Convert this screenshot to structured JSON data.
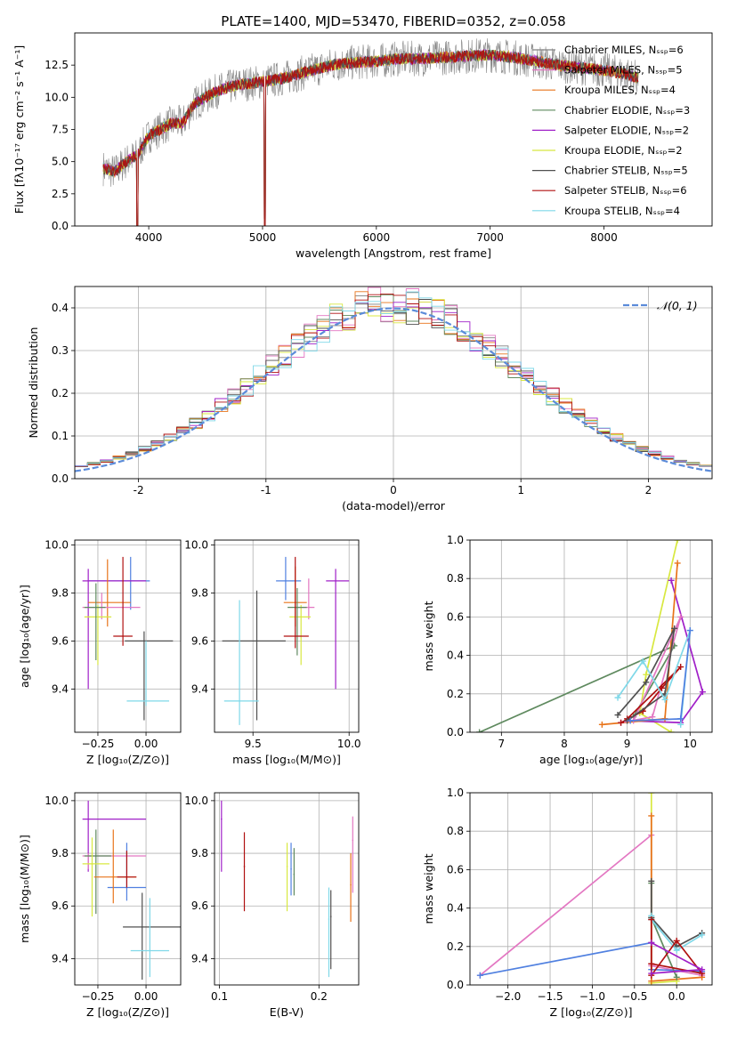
{
  "title": "PLATE=1400, MJD=53470, FIBERID=0352, z=0.058",
  "colors": {
    "gray": "#808080",
    "cyan": "#80dfe0",
    "pink": "#e377c2",
    "orange": "#e8741a",
    "green": "#5f8a5f",
    "purple": "#a020c8",
    "yellow": "#d8e840",
    "dark": "#505050",
    "red": "#b01010",
    "blue": "#5080e0",
    "ltblue": "#7fd8e8"
  },
  "chart_data": [
    {
      "id": "spectrum",
      "type": "line",
      "title": "PLATE=1400, MJD=53470, FIBERID=0352, z=0.058",
      "xlabel": "wavelength [Angstrom, rest frame]",
      "ylabel": "Flux [fλ10⁻¹⁷ erg cm⁻² s⁻¹ A⁻¹]",
      "xlim": [
        3350,
        8950
      ],
      "ylim": [
        0,
        15
      ],
      "xticks": [
        4000,
        5000,
        6000,
        7000,
        8000
      ],
      "yticks": [
        0.0,
        2.5,
        5.0,
        7.5,
        10.0,
        12.5
      ],
      "legend_position": "right",
      "x_range_data": [
        3600,
        8300
      ],
      "envelope": {
        "x": [
          3600,
          3700,
          3800,
          3900,
          4000,
          4100,
          4200,
          4300,
          4400,
          4500,
          4600,
          4800,
          5000,
          5200,
          5400,
          5600,
          5800,
          6000,
          6200,
          6400,
          6600,
          6800,
          7000,
          7200,
          7400,
          7600,
          7800,
          8000,
          8200,
          8300
        ],
        "y": [
          4.5,
          4.2,
          5.0,
          5.5,
          7.0,
          7.5,
          8.0,
          8.0,
          9.5,
          10.0,
          10.5,
          11.0,
          11.2,
          11.5,
          12.0,
          12.5,
          12.7,
          12.8,
          13.0,
          13.0,
          13.1,
          13.2,
          13.3,
          13.1,
          12.8,
          12.5,
          12.3,
          12.1,
          11.8,
          11.5
        ]
      },
      "series": [
        {
          "name": "Chabrier MILES, N_SSP=6",
          "color": "#808080"
        },
        {
          "name": "Salpeter MILES, N_SSP=5",
          "color": "#e377c2"
        },
        {
          "name": "Kroupa MILES, N_SSP=4",
          "color": "#e8741a"
        },
        {
          "name": "Chabrier ELODIE, N_SSP=3",
          "color": "#5f8a5f"
        },
        {
          "name": "Salpeter ELODIE, N_SSP=2",
          "color": "#a020c8"
        },
        {
          "name": "Kroupa ELODIE, N_SSP=2",
          "color": "#d8e840"
        },
        {
          "name": "Chabrier STELIB, N_SSP=5",
          "color": "#505050"
        },
        {
          "name": "Salpeter STELIB, N_SSP=6",
          "color": "#b01010"
        },
        {
          "name": "Kroupa STELIB, N_SSP=4",
          "color": "#7fd8e8"
        }
      ]
    },
    {
      "id": "residuals",
      "type": "line",
      "xlabel": "(data-model)/error",
      "ylabel": "Normed distribution",
      "xlim": [
        -2.5,
        2.5
      ],
      "ylim": [
        0,
        0.45
      ],
      "xticks": [
        -2,
        -1,
        0,
        1,
        2
      ],
      "yticks": [
        0.0,
        0.1,
        0.2,
        0.3,
        0.4
      ],
      "grid": true,
      "legend_position": "top-right",
      "legend": "𝒩(0, 1)",
      "reference_curve": {
        "mean": 0,
        "sigma": 1,
        "color": "#5b8bd9"
      },
      "series_colors": [
        "#808080",
        "#e377c2",
        "#e8741a",
        "#5f8a5f",
        "#a020c8",
        "#d8e840",
        "#505050",
        "#b01010",
        "#7fd8e8"
      ]
    },
    {
      "id": "age-vs-Z",
      "type": "scatter",
      "xlabel": "Z [log₁₀(Z/Z⊙)]",
      "ylabel": "age  [log₁₀(age/yr)]",
      "xlim": [
        -0.37,
        0.18
      ],
      "ylim": [
        9.22,
        10.02
      ],
      "xticks": [
        -0.25,
        0.0
      ],
      "xticklabels": [
        "−0.25",
        "0.00"
      ],
      "yticks": [
        9.4,
        9.6,
        9.8,
        10.0
      ],
      "grid": true,
      "points": [
        {
          "x": -0.08,
          "y": 9.85,
          "xerr": [
            0.22,
            0.1
          ],
          "yerr": [
            0.12,
            0.1
          ],
          "color": "#5080e0"
        },
        {
          "x": -0.3,
          "y": 9.85,
          "xerr": [
            0.03,
            0.3
          ],
          "yerr": [
            0.45,
            0.05
          ],
          "color": "#a020c8"
        },
        {
          "x": -0.2,
          "y": 9.76,
          "xerr": [
            0.1,
            0.12
          ],
          "yerr": [
            0.1,
            0.18
          ],
          "color": "#e8741a"
        },
        {
          "x": -0.23,
          "y": 9.74,
          "xerr": [
            0.1,
            0.2
          ],
          "yerr": [
            0.05,
            0.06
          ],
          "color": "#e377c2"
        },
        {
          "x": -0.25,
          "y": 9.7,
          "xerr": [
            0.07,
            0.07
          ],
          "yerr": [
            0.2,
            0.05
          ],
          "color": "#d8e840"
        },
        {
          "x": -0.26,
          "y": 9.74,
          "xerr": [
            0.06,
            0.05
          ],
          "yerr": [
            0.22,
            0.1
          ],
          "color": "#5f8a5f"
        },
        {
          "x": -0.12,
          "y": 9.62,
          "xerr": [
            0.05,
            0.05
          ],
          "yerr": [
            0.04,
            0.33
          ],
          "color": "#b01010"
        },
        {
          "x": -0.01,
          "y": 9.6,
          "xerr": [
            0.1,
            0.15
          ],
          "yerr": [
            0.33,
            0.04
          ],
          "color": "#505050"
        },
        {
          "x": 0.0,
          "y": 9.35,
          "xerr": [
            0.1,
            0.12
          ],
          "yerr": [
            0.02,
            0.25
          ],
          "color": "#7fd8e8"
        }
      ]
    },
    {
      "id": "age-vs-mass",
      "type": "scatter",
      "xlabel": "mass [log₁₀(M/M⊙)]",
      "ylabel": "",
      "xlim": [
        9.3,
        10.05
      ],
      "ylim": [
        9.22,
        10.02
      ],
      "xticks": [
        9.5,
        10.0
      ],
      "xticklabels": [
        "9.5",
        "10.0"
      ],
      "yticks": [
        9.4,
        9.6,
        9.8,
        10.0
      ],
      "grid": true,
      "points": [
        {
          "x": 9.67,
          "y": 9.85,
          "xerr": [
            0.05,
            0.08
          ],
          "yerr": [
            0.08,
            0.1
          ],
          "color": "#5080e0"
        },
        {
          "x": 9.93,
          "y": 9.85,
          "xerr": [
            0.05,
            0.07
          ],
          "yerr": [
            0.45,
            0.05
          ],
          "color": "#a020c8"
        },
        {
          "x": 9.72,
          "y": 9.76,
          "xerr": [
            0.06,
            0.06
          ],
          "yerr": [
            0.1,
            0.15
          ],
          "color": "#e8741a"
        },
        {
          "x": 9.79,
          "y": 9.74,
          "xerr": [
            0.07,
            0.03
          ],
          "yerr": [
            0.05,
            0.12
          ],
          "color": "#e377c2"
        },
        {
          "x": 9.75,
          "y": 9.7,
          "xerr": [
            0.06,
            0.05
          ],
          "yerr": [
            0.2,
            0.05
          ],
          "color": "#d8e840"
        },
        {
          "x": 9.73,
          "y": 9.74,
          "xerr": [
            0.05,
            0.05
          ],
          "yerr": [
            0.2,
            0.08
          ],
          "color": "#5f8a5f"
        },
        {
          "x": 9.72,
          "y": 9.62,
          "xerr": [
            0.06,
            0.07
          ],
          "yerr": [
            0.05,
            0.33
          ],
          "color": "#b01010"
        },
        {
          "x": 9.52,
          "y": 9.6,
          "xerr": [
            0.18,
            0.15
          ],
          "yerr": [
            0.33,
            0.21
          ],
          "color": "#505050"
        },
        {
          "x": 9.43,
          "y": 9.35,
          "xerr": [
            0.08,
            0.1
          ],
          "yerr": [
            0.1,
            0.42
          ],
          "color": "#7fd8e8"
        }
      ]
    },
    {
      "id": "weight-vs-age",
      "type": "line",
      "xlabel": "age  [log₁₀(age/yr)]",
      "ylabel": "mass weight",
      "xlim": [
        6.5,
        10.35
      ],
      "ylim": [
        0,
        1
      ],
      "xticks": [
        7,
        8,
        9,
        10
      ],
      "yticks": [
        0.0,
        0.2,
        0.4,
        0.6,
        0.8,
        1.0
      ],
      "grid": true,
      "series": [
        {
          "color": "#5f8a5f",
          "x": [
            6.65,
            9.75,
            9.1
          ],
          "y": [
            0.0,
            0.45,
            0.08
          ]
        },
        {
          "color": "#d8e840",
          "x": [
            9.7,
            9.2,
            9.3,
            9.8
          ],
          "y": [
            0.0,
            0.1,
            0.3,
            1.0
          ]
        },
        {
          "color": "#a020c8",
          "x": [
            9.7,
            10.2,
            9.85,
            9.0
          ],
          "y": [
            0.79,
            0.21,
            0.05,
            0.06
          ]
        },
        {
          "color": "#e8741a",
          "x": [
            8.6,
            9.6,
            9.8
          ],
          "y": [
            0.04,
            0.07,
            0.88
          ]
        },
        {
          "color": "#e377c2",
          "x": [
            8.9,
            9.4,
            9.85,
            9.1
          ],
          "y": [
            0.05,
            0.08,
            0.6,
            0.06
          ]
        },
        {
          "color": "#b01010",
          "x": [
            8.9,
            9.25,
            9.55,
            9.85,
            9.0
          ],
          "y": [
            0.05,
            0.11,
            0.23,
            0.34,
            0.07
          ]
        },
        {
          "color": "#505050",
          "x": [
            8.85,
            9.3,
            9.75,
            9.6,
            9.0
          ],
          "y": [
            0.09,
            0.26,
            0.54,
            0.2,
            0.06
          ]
        },
        {
          "color": "#7fd8e8",
          "x": [
            8.85,
            9.25,
            9.6,
            10.0,
            9.85
          ],
          "y": [
            0.18,
            0.37,
            0.17,
            0.53,
            0.04
          ]
        },
        {
          "color": "#5080e0",
          "x": [
            9.05,
            9.85,
            10.0
          ],
          "y": [
            0.06,
            0.07,
            0.53
          ]
        }
      ]
    },
    {
      "id": "mass-vs-Z",
      "type": "scatter",
      "xlabel": "Z [log₁₀(Z/Z⊙)]",
      "ylabel": "mass [log₁₀(M/M⊙)]",
      "xlim": [
        -0.37,
        0.18
      ],
      "ylim": [
        9.3,
        10.03
      ],
      "xticks": [
        -0.25,
        0.0
      ],
      "xticklabels": [
        "−0.25",
        "0.00"
      ],
      "yticks": [
        9.4,
        9.6,
        9.8,
        10.0
      ],
      "grid": true,
      "points": [
        {
          "x": -0.3,
          "y": 9.93,
          "xerr": [
            0.03,
            0.3
          ],
          "yerr": [
            0.2,
            0.07
          ],
          "color": "#a020c8"
        },
        {
          "x": -0.3,
          "y": 9.79,
          "xerr": [
            0.03,
            0.3
          ],
          "yerr": [
            0.05,
            0.01
          ],
          "color": "#e377c2"
        },
        {
          "x": -0.26,
          "y": 9.79,
          "xerr": [
            0.06,
            0.08
          ],
          "yerr": [
            0.22,
            0.1
          ],
          "color": "#5f8a5f"
        },
        {
          "x": -0.28,
          "y": 9.76,
          "xerr": [
            0.05,
            0.09
          ],
          "yerr": [
            0.2,
            0.1
          ],
          "color": "#d8e840"
        },
        {
          "x": -0.1,
          "y": 9.67,
          "xerr": [
            0.1,
            0.1
          ],
          "yerr": [
            0.05,
            0.17
          ],
          "color": "#5080e0"
        },
        {
          "x": -0.17,
          "y": 9.71,
          "xerr": [
            0.1,
            0.12
          ],
          "yerr": [
            0.1,
            0.18
          ],
          "color": "#e8741a"
        },
        {
          "x": -0.1,
          "y": 9.71,
          "xerr": [
            0.05,
            0.05
          ],
          "yerr": [
            0.04,
            0.1
          ],
          "color": "#b01010"
        },
        {
          "x": -0.02,
          "y": 9.52,
          "xerr": [
            0.1,
            0.2
          ],
          "yerr": [
            0.2,
            0.13
          ],
          "color": "#505050"
        },
        {
          "x": 0.02,
          "y": 9.43,
          "xerr": [
            0.1,
            0.1
          ],
          "yerr": [
            0.1,
            0.2
          ],
          "color": "#7fd8e8"
        }
      ]
    },
    {
      "id": "mass-vs-EBV",
      "type": "scatter",
      "xlabel": "E(B-V)",
      "ylabel": "",
      "xlim": [
        0.095,
        0.24
      ],
      "ylim": [
        9.3,
        10.03
      ],
      "xticks": [
        0.1,
        0.2
      ],
      "xticklabels": [
        "0.1",
        "0.2"
      ],
      "yticks": [
        9.4,
        9.6,
        9.8,
        10.0
      ],
      "grid": true,
      "points": [
        {
          "x": 0.102,
          "y": 9.93,
          "xerr": [
            0,
            0
          ],
          "yerr": [
            0.2,
            0.07
          ],
          "color": "#a020c8"
        },
        {
          "x": 0.125,
          "y": 9.75,
          "xerr": [
            0,
            0
          ],
          "yerr": [
            0.17,
            0.13
          ],
          "color": "#b01010"
        },
        {
          "x": 0.168,
          "y": 9.75,
          "xerr": [
            0,
            0
          ],
          "yerr": [
            0.17,
            0.09
          ],
          "color": "#d8e840"
        },
        {
          "x": 0.172,
          "y": 9.74,
          "xerr": [
            0,
            0
          ],
          "yerr": [
            0.1,
            0.1
          ],
          "color": "#5080e0"
        },
        {
          "x": 0.175,
          "y": 9.72,
          "xerr": [
            0,
            0
          ],
          "yerr": [
            0.08,
            0.1
          ],
          "color": "#5f8a5f"
        },
        {
          "x": 0.21,
          "y": 9.55,
          "xerr": [
            0,
            0
          ],
          "yerr": [
            0.22,
            0.12
          ],
          "color": "#7fd8e8"
        },
        {
          "x": 0.212,
          "y": 9.56,
          "xerr": [
            0,
            0
          ],
          "yerr": [
            0.2,
            0.1
          ],
          "color": "#505050"
        },
        {
          "x": 0.232,
          "y": 9.68,
          "xerr": [
            0,
            0
          ],
          "yerr": [
            0.14,
            0.12
          ],
          "color": "#e8741a"
        },
        {
          "x": 0.234,
          "y": 9.85,
          "xerr": [
            0,
            0
          ],
          "yerr": [
            0.2,
            0.09
          ],
          "color": "#e377c2"
        }
      ]
    },
    {
      "id": "weight-vs-Z",
      "type": "line",
      "xlabel": "Z [log₁₀(Z/Z⊙)]",
      "ylabel": "mass weight",
      "xlim": [
        -2.45,
        0.42
      ],
      "ylim": [
        0,
        1
      ],
      "xticks": [
        -2.0,
        -1.5,
        -1.0,
        -0.5,
        0.0
      ],
      "xticklabels": [
        "−2.0",
        "−1.5",
        "−1.0",
        "−0.5",
        "0.0"
      ],
      "yticks": [
        0.0,
        0.2,
        0.4,
        0.6,
        0.8,
        1.0
      ],
      "grid": true,
      "series": [
        {
          "color": "#e377c2",
          "x": [
            -2.33,
            -0.3,
            -0.3,
            0.3
          ],
          "y": [
            0.05,
            0.78,
            0.1,
            0.05
          ]
        },
        {
          "color": "#5080e0",
          "x": [
            -2.33,
            -0.3,
            -0.3,
            0.3
          ],
          "y": [
            0.05,
            0.22,
            0.08,
            0.07
          ]
        },
        {
          "color": "#d8e840",
          "x": [
            -0.3,
            -0.3,
            0.0
          ],
          "y": [
            1.0,
            0.01,
            0.02
          ]
        },
        {
          "color": "#e8741a",
          "x": [
            -0.3,
            -0.3,
            0.3
          ],
          "y": [
            0.88,
            0.02,
            0.04
          ]
        },
        {
          "color": "#5f8a5f",
          "x": [
            -0.3,
            -0.3,
            0.0
          ],
          "y": [
            0.53,
            0.35,
            0.04
          ]
        },
        {
          "color": "#505050",
          "x": [
            -0.3,
            -0.3,
            0.0,
            0.3
          ],
          "y": [
            0.54,
            0.35,
            0.2,
            0.27
          ]
        },
        {
          "color": "#7fd8e8",
          "x": [
            -0.3,
            -0.3,
            0.0,
            0.3
          ],
          "y": [
            0.36,
            0.34,
            0.18,
            0.26
          ]
        },
        {
          "color": "#b01010",
          "x": [
            -0.3,
            -0.3,
            0.0,
            0.3,
            -0.3
          ],
          "y": [
            0.34,
            0.05,
            0.23,
            0.06,
            0.11
          ]
        },
        {
          "color": "#a020c8",
          "x": [
            -0.3,
            0.3,
            -0.3
          ],
          "y": [
            0.22,
            0.08,
            0.06
          ]
        }
      ]
    }
  ]
}
